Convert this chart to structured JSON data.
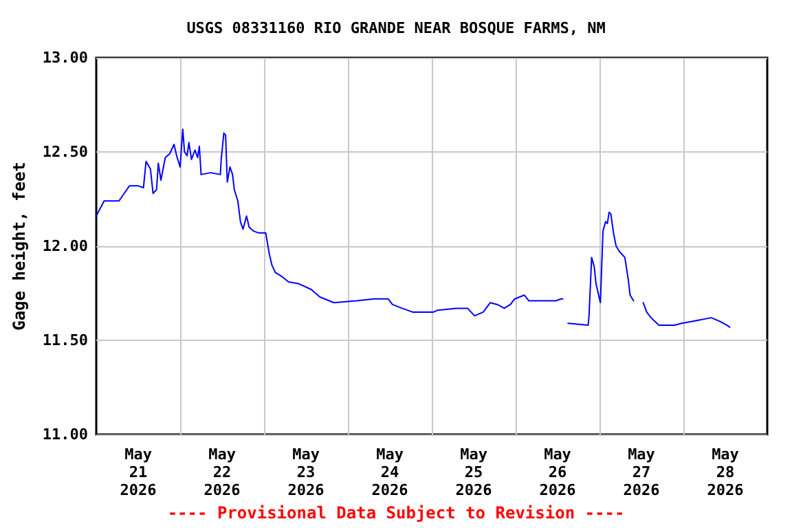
{
  "chart_data": {
    "type": "line",
    "title": "USGS 08331160 RIO GRANDE NEAR BOSQUE FARMS, NM",
    "ylabel": "Gage height, feet",
    "annotations": [
      "---- Provisional Data Subject to Revision ----"
    ],
    "x": [
      "2026-05-21T00:00",
      "2026-05-21T02:15",
      "2026-05-21T06:30",
      "2026-05-21T08:00",
      "2026-05-21T09:30",
      "2026-05-21T12:00",
      "2026-05-21T13:30",
      "2026-05-21T14:15",
      "2026-05-21T15:30",
      "2026-05-21T16:15",
      "2026-05-21T17:15",
      "2026-05-21T17:45",
      "2026-05-21T18:30",
      "2026-05-21T19:45",
      "2026-05-21T21:00",
      "2026-05-21T22:15",
      "2026-05-21T23:00",
      "2026-05-22T00:00",
      "2026-05-22T00:45",
      "2026-05-22T01:15",
      "2026-05-22T02:00",
      "2026-05-22T02:30",
      "2026-05-22T03:15",
      "2026-05-22T04:15",
      "2026-05-22T05:00",
      "2026-05-22T05:30",
      "2026-05-22T06:00",
      "2026-05-22T08:45",
      "2026-05-22T11:30",
      "2026-05-22T11:45",
      "2026-05-22T12:30",
      "2026-05-22T13:00",
      "2026-05-22T13:30",
      "2026-05-22T14:15",
      "2026-05-22T15:00",
      "2026-05-22T15:30",
      "2026-05-22T16:30",
      "2026-05-22T17:15",
      "2026-05-22T18:00",
      "2026-05-22T19:00",
      "2026-05-22T19:45",
      "2026-05-22T21:00",
      "2026-05-22T22:30",
      "2026-05-23T00:30",
      "2026-05-23T01:30",
      "2026-05-23T02:15",
      "2026-05-23T03:15",
      "2026-05-23T05:00",
      "2026-05-23T07:00",
      "2026-05-23T10:00",
      "2026-05-23T13:30",
      "2026-05-23T16:00",
      "2026-05-23T20:00",
      "2026-05-24T02:30",
      "2026-05-24T07:30",
      "2026-05-24T11:30",
      "2026-05-24T12:45",
      "2026-05-24T15:30",
      "2026-05-24T18:30",
      "2026-05-25T00:30",
      "2026-05-25T01:45",
      "2026-05-25T07:00",
      "2026-05-25T10:15",
      "2026-05-25T12:15",
      "2026-05-25T14:45",
      "2026-05-25T16:45",
      "2026-05-25T18:45",
      "2026-05-25T20:45",
      "2026-05-25T22:30",
      "2026-05-25T23:45",
      "2026-05-26T02:30",
      "2026-05-26T03:45",
      "2026-05-26T10:15",
      "2026-05-26T11:30",
      "2026-05-26T13:00",
      "2026-05-26T13:30",
      "2026-05-26T14:15",
      "2026-05-26T15:00",
      "2026-05-26T20:45",
      "2026-05-26T21:00",
      "2026-05-26T21:45",
      "2026-05-26T22:30",
      "2026-05-26T23:00",
      "2026-05-26T23:45",
      "2026-05-27T00:15",
      "2026-05-27T01:00",
      "2026-05-27T01:45",
      "2026-05-27T02:15",
      "2026-05-27T02:45",
      "2026-05-27T03:15",
      "2026-05-27T04:00",
      "2026-05-27T04:45",
      "2026-05-27T05:45",
      "2026-05-27T07:15",
      "2026-05-27T08:15",
      "2026-05-27T08:45",
      "2026-05-27T09:45",
      "2026-05-27T11:00",
      "2026-05-27T12:30",
      "2026-05-27T13:30",
      "2026-05-27T14:45",
      "2026-05-27T17:00",
      "2026-05-27T21:30",
      "2026-05-27T23:30",
      "2026-05-28T02:30",
      "2026-05-28T08:00",
      "2026-05-28T10:30",
      "2026-05-28T12:30",
      "2026-05-28T13:15"
    ],
    "series": [
      {
        "color": "#0000ff",
        "values": [
          12.16,
          12.24,
          12.24,
          12.28,
          12.32,
          12.32,
          12.31,
          12.45,
          12.41,
          12.28,
          12.3,
          12.44,
          12.35,
          12.47,
          12.49,
          12.54,
          12.48,
          12.42,
          12.62,
          12.5,
          12.48,
          12.55,
          12.46,
          12.51,
          12.47,
          12.53,
          12.38,
          12.39,
          12.38,
          12.46,
          12.6,
          12.59,
          12.34,
          12.42,
          12.38,
          12.3,
          12.24,
          12.13,
          12.09,
          12.16,
          12.1,
          12.08,
          12.07,
          12.07,
          11.96,
          11.9,
          11.86,
          11.84,
          11.81,
          11.8,
          11.77,
          11.73,
          11.7,
          11.71,
          11.72,
          11.72,
          11.69,
          11.67,
          11.65,
          11.65,
          11.66,
          11.67,
          11.67,
          11.63,
          11.65,
          11.7,
          11.69,
          11.67,
          11.69,
          11.72,
          11.74,
          11.71,
          11.71,
          11.71,
          11.72,
          11.72,
          null,
          11.59,
          11.58,
          11.63,
          11.94,
          11.89,
          11.8,
          11.74,
          11.7,
          12.08,
          12.13,
          12.12,
          12.18,
          12.17,
          12.07,
          12.0,
          11.97,
          11.94,
          11.82,
          11.74,
          11.71,
          null,
          11.7,
          11.65,
          11.62,
          11.58,
          11.58,
          11.59,
          11.6,
          11.62,
          11.6,
          11.58,
          11.57
        ]
      }
    ],
    "xlim": [
      "2026-05-21T00:00",
      "2026-05-29T00:00"
    ],
    "xticks": [
      {
        "value": "2026-05-21T12:00",
        "label": "May\n21\n2026"
      },
      {
        "value": "2026-05-22T00:00",
        "label": null
      },
      {
        "value": "2026-05-22T12:00",
        "label": "May\n22\n2026"
      },
      {
        "value": "2026-05-23T00:00",
        "label": null
      },
      {
        "value": "2026-05-23T12:00",
        "label": "May\n23\n2026"
      },
      {
        "value": "2026-05-24T00:00",
        "label": null
      },
      {
        "value": "2026-05-24T12:00",
        "label": "May\n24\n2026"
      },
      {
        "value": "2026-05-25T00:00",
        "label": null
      },
      {
        "value": "2026-05-25T12:00",
        "label": "May\n25\n2026"
      },
      {
        "value": "2026-05-26T00:00",
        "label": null
      },
      {
        "value": "2026-05-26T12:00",
        "label": "May\n26\n2026"
      },
      {
        "value": "2026-05-27T00:00",
        "label": null
      },
      {
        "value": "2026-05-27T12:00",
        "label": "May\n27\n2026"
      },
      {
        "value": "2026-05-28T00:00",
        "label": null
      },
      {
        "value": "2026-05-28T12:00",
        "label": "May\n28\n2026"
      }
    ],
    "ylim": [
      11,
      13
    ],
    "yticks": [
      {
        "value": 11,
        "label": "11.00"
      },
      {
        "value": 11.5,
        "label": "11.50"
      },
      {
        "value": 12,
        "label": "12.00"
      },
      {
        "value": 12.5,
        "label": "12.50"
      },
      {
        "value": 13,
        "label": "13.00"
      }
    ],
    "grid": true
  }
}
